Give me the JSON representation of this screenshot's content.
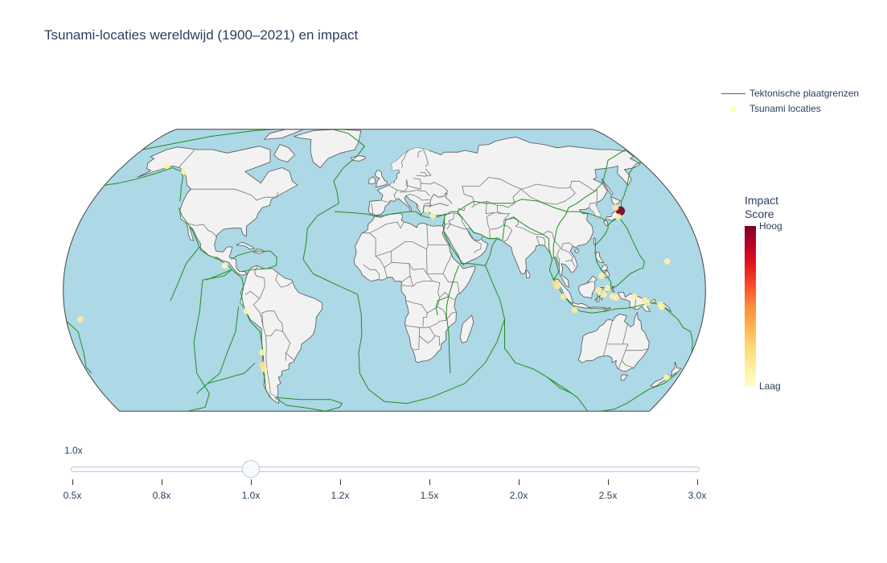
{
  "title": "Tsunami-locaties wereldwijd (1900–2021) en impact",
  "legend": {
    "items": [
      {
        "label": "Tektonische plaatgrenzen",
        "kind": "line",
        "color": "#1f8f1f"
      },
      {
        "label": "Tsunami locaties",
        "kind": "marker",
        "color": "#ffffcc"
      }
    ]
  },
  "colorbar": {
    "title_line1": "Impact",
    "title_line2": "Score",
    "high_label": "Hoog",
    "low_label": "Laag",
    "colors": [
      "#800026",
      "#bd0026",
      "#e31a1c",
      "#fc4e2a",
      "#fd8d3c",
      "#feb24c",
      "#fed976",
      "#ffeda0",
      "#ffffcc"
    ]
  },
  "map": {
    "projection": "natural earth",
    "ocean_color": "#add8e6",
    "land_color": "#f2f2f2",
    "border_color": "#555555",
    "plate_color": "#1f8f1f",
    "tsunami_points": [
      {
        "lon": 142.4,
        "lat": 38.3,
        "impact": 1.0
      },
      {
        "lon": 140.5,
        "lat": 40.0,
        "impact": 0.15
      },
      {
        "lon": 139.5,
        "lat": 35.5,
        "impact": 0.1
      },
      {
        "lon": -150.0,
        "lat": 61.0,
        "impact": 0.1
      },
      {
        "lon": -135.0,
        "lat": 58.0,
        "impact": 0.08
      },
      {
        "lon": -172.0,
        "lat": -14.0,
        "impact": 0.15
      },
      {
        "lon": -73.0,
        "lat": -36.0,
        "impact": 0.2
      },
      {
        "lon": -72.5,
        "lat": -38.0,
        "impact": 0.15
      },
      {
        "lon": -71.5,
        "lat": -30.0,
        "impact": 0.1
      },
      {
        "lon": -77.5,
        "lat": -10.0,
        "impact": 0.05
      },
      {
        "lon": -90.0,
        "lat": 12.0,
        "impact": 0.05
      },
      {
        "lon": 95.9,
        "lat": 3.3,
        "impact": 0.25
      },
      {
        "lon": 97.0,
        "lat": 2.0,
        "impact": 0.15
      },
      {
        "lon": 100.5,
        "lat": -3.0,
        "impact": 0.15
      },
      {
        "lon": 107.0,
        "lat": -9.5,
        "impact": 0.15
      },
      {
        "lon": 120.0,
        "lat": 0.0,
        "impact": 0.1
      },
      {
        "lon": 125.0,
        "lat": 1.0,
        "impact": 0.1
      },
      {
        "lon": 123.0,
        "lat": -2.0,
        "impact": 0.1
      },
      {
        "lon": 122.0,
        "lat": 7.0,
        "impact": 0.1
      },
      {
        "lon": 128.0,
        "lat": -3.0,
        "impact": 0.1
      },
      {
        "lon": 130.0,
        "lat": -3.5,
        "impact": 0.1
      },
      {
        "lon": 140.0,
        "lat": -3.0,
        "impact": 0.1
      },
      {
        "lon": 146.0,
        "lat": -5.0,
        "impact": 0.1
      },
      {
        "lon": 147.5,
        "lat": -6.0,
        "impact": 0.1
      },
      {
        "lon": 155.0,
        "lat": -7.0,
        "impact": 0.1
      },
      {
        "lon": 156.0,
        "lat": -8.0,
        "impact": 0.1
      },
      {
        "lon": 160.0,
        "lat": 14.0,
        "impact": 0.1
      },
      {
        "lon": 173.0,
        "lat": -42.0,
        "impact": 0.1
      },
      {
        "lon": 29.0,
        "lat": 36.0,
        "impact": 0.1
      },
      {
        "lon": 26.0,
        "lat": 39.0,
        "impact": 0.05
      }
    ]
  },
  "slider": {
    "current_label": "1.0x",
    "ticks": [
      "0.5x",
      "0.8x",
      "1.0x",
      "1.2x",
      "1.5x",
      "2.0x",
      "2.5x",
      "3.0x"
    ],
    "active_index": 2
  }
}
